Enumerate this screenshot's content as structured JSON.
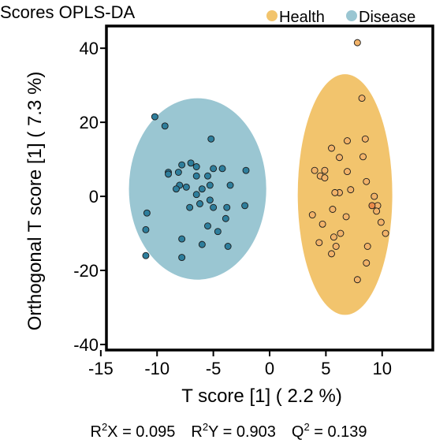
{
  "chart_data": {
    "type": "scatter",
    "title": "Scores OPLS-DA",
    "xlabel": "T score [1] ( 2.2 %)",
    "ylabel": "Orthogonal T score [1] ( 7.3 %)",
    "xlim": [
      -14.5,
      14.5
    ],
    "ylim": [
      -41.5,
      46
    ],
    "xticks": [
      -15,
      -10,
      -5,
      0,
      5,
      10
    ],
    "yticks": [
      -40,
      -20,
      0,
      20,
      40
    ],
    "xtick_labels": [
      "-15",
      "-10",
      "-5",
      "0",
      "5",
      "10"
    ],
    "ytick_labels": [
      "-40",
      "-20",
      "0",
      "20",
      "40"
    ],
    "grid": false,
    "legend_position": "top-right",
    "legend": [
      {
        "name": "Health",
        "color": "#F2C46D"
      },
      {
        "name": "Disease",
        "color": "#9AC6D2"
      }
    ],
    "series": [
      {
        "name": "Health",
        "ellipse": {
          "cx": 6.7,
          "cy": 0.5,
          "rx": 4.2,
          "ry": 32.5,
          "color": "#F2C46D"
        },
        "point_color": "#F2B36A",
        "points": [
          [
            7.8,
            41.5
          ],
          [
            8.2,
            26.5
          ],
          [
            8.5,
            15.5
          ],
          [
            6.9,
            15.0
          ],
          [
            5.5,
            13.0
          ],
          [
            6.2,
            10.5
          ],
          [
            8.3,
            10.7
          ],
          [
            4.0,
            7.0
          ],
          [
            4.9,
            7.0
          ],
          [
            4.5,
            5.5
          ],
          [
            4.9,
            5.0
          ],
          [
            6.9,
            6.7
          ],
          [
            6.2,
            1.0
          ],
          [
            7.2,
            1.8
          ],
          [
            5.8,
            1.0
          ],
          [
            8.6,
            4.0
          ],
          [
            9.3,
            0.0
          ],
          [
            9.6,
            -2.5
          ],
          [
            5.6,
            -3.5
          ],
          [
            9.5,
            -4.0
          ],
          [
            3.8,
            -5.0
          ],
          [
            6.8,
            -5.5
          ],
          [
            4.7,
            -7.5
          ],
          [
            9.9,
            -7.0
          ],
          [
            10.3,
            -10.0
          ],
          [
            6.3,
            -10.0
          ],
          [
            5.7,
            -11.0
          ],
          [
            4.4,
            -12.5
          ],
          [
            5.9,
            -13.5
          ],
          [
            8.7,
            -13.5
          ],
          [
            5.5,
            -15.5
          ],
          [
            8.6,
            -18.0
          ],
          [
            7.8,
            -22.5
          ]
        ],
        "highlight": [
          [
            9.1,
            -2.5
          ]
        ],
        "highlight_color": "#EA8A4A"
      },
      {
        "name": "Disease",
        "ellipse": {
          "cx": -6.4,
          "cy": 2.0,
          "rx": 6.1,
          "ry": 24.5,
          "color": "#9AC6D2"
        },
        "point_color": "#2E7E9C",
        "points": [
          [
            -10.2,
            21.5
          ],
          [
            -9.3,
            19.0
          ],
          [
            -5.2,
            15.5
          ],
          [
            -7.8,
            8.5
          ],
          [
            -6.5,
            8.0
          ],
          [
            -7.0,
            9.0
          ],
          [
            -5.0,
            7.5
          ],
          [
            -4.2,
            7.5
          ],
          [
            -2.1,
            7.0
          ],
          [
            -9.0,
            6.5
          ],
          [
            -8.1,
            6.5
          ],
          [
            -9.0,
            6.0
          ],
          [
            -5.5,
            5.5
          ],
          [
            -6.5,
            5.5
          ],
          [
            -8.0,
            3.0
          ],
          [
            -8.3,
            2.0
          ],
          [
            -5.3,
            3.0
          ],
          [
            -7.4,
            2.5
          ],
          [
            -6.0,
            2.0
          ],
          [
            -3.5,
            3.0
          ],
          [
            -6.5,
            0.5
          ],
          [
            -5.3,
            -1.0
          ],
          [
            -7.1,
            -3.0
          ],
          [
            -6.2,
            -2.0
          ],
          [
            -5.0,
            -3.0
          ],
          [
            -3.8,
            -3.0
          ],
          [
            -2.2,
            -2.5
          ],
          [
            -10.9,
            -4.5
          ],
          [
            -3.9,
            -6.0
          ],
          [
            -5.5,
            -8.0
          ],
          [
            -11.0,
            -9.0
          ],
          [
            -4.6,
            -9.5
          ],
          [
            -7.8,
            -11.5
          ],
          [
            -6.0,
            -13.0
          ],
          [
            -3.7,
            -13.5
          ],
          [
            -11.0,
            -16.0
          ],
          [
            -7.8,
            -16.5
          ]
        ]
      }
    ],
    "annotations": {
      "r2x_prefix": "R",
      "r2x_sup": "2",
      "r2x_suffix": "X = 0.095",
      "r2y_prefix": "R",
      "r2y_sup": "2",
      "r2y_suffix": "Y = 0.903",
      "q2_prefix": "Q",
      "q2_sup": "2",
      "q2_suffix": " = 0.139"
    }
  }
}
